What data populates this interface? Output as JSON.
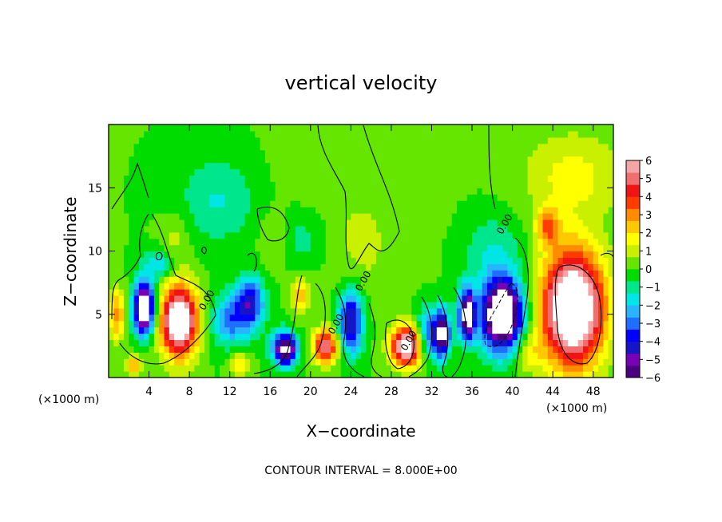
{
  "chart_data": {
    "type": "heatmap",
    "title": "vertical velocity",
    "xlabel": "X−coordinate",
    "ylabel": "Z−coordinate",
    "x_unit_left": "(×1000 m)",
    "x_unit_right": "(×1000 m)",
    "footer": "CONTOUR INTERVAL = 8.000E+00",
    "xlim": [
      0,
      50
    ],
    "ylim": [
      0,
      20
    ],
    "x_ticks": [
      4,
      8,
      12,
      16,
      20,
      24,
      28,
      32,
      36,
      40,
      44,
      48
    ],
    "x_tick_labels": [
      "4",
      "8",
      "12",
      "16",
      "20",
      "24",
      "28",
      "32",
      "36",
      "40",
      "44",
      "48"
    ],
    "y_ticks": [
      5,
      10,
      15
    ],
    "y_tick_labels": [
      "5",
      "10",
      "15"
    ],
    "contour_labels": [
      {
        "x": 10.0,
        "y": 6.0,
        "text": "0.00"
      },
      {
        "x": 25.5,
        "y": 7.5,
        "text": "0.00"
      },
      {
        "x": 22.8,
        "y": 4.1,
        "text": "0.00"
      },
      {
        "x": 30.0,
        "y": 2.8,
        "text": "0.00"
      },
      {
        "x": 39.5,
        "y": 12.0,
        "text": "0.00"
      }
    ],
    "colorbar": {
      "range": [
        -6,
        6
      ],
      "tick_labels": [
        "6",
        "5",
        "4",
        "3",
        "2",
        "1",
        "0",
        "−1",
        "−2",
        "−3",
        "−4",
        "−5",
        "−6"
      ],
      "colors": [
        "#4b0082",
        "#7a00b5",
        "#1414c8",
        "#0000ff",
        "#1e6eff",
        "#28b4ff",
        "#00e6e6",
        "#00e68c",
        "#00dc00",
        "#64e600",
        "#c8f000",
        "#ffff00",
        "#ffc800",
        "#ff8c00",
        "#ff3c00",
        "#f01414",
        "#f06e6e",
        "#f5a5a5"
      ]
    },
    "features": [
      {
        "x": 22.0,
        "y": 13.0,
        "v": 0.4,
        "sx": 10.0,
        "sy": 6.0
      },
      {
        "x": 25.0,
        "y": 10.0,
        "v": 0.6,
        "sx": 3.0,
        "sy": 4.0
      },
      {
        "x": 11.0,
        "y": 14.0,
        "v": -1.5,
        "sx": 4.0,
        "sy": 3.5
      },
      {
        "x": 19.0,
        "y": 11.0,
        "v": -1.2,
        "sx": 3.0,
        "sy": 2.5
      },
      {
        "x": 38.0,
        "y": 10.0,
        "v": -1.3,
        "sx": 3.0,
        "sy": 3.0
      },
      {
        "x": 46.0,
        "y": 16.0,
        "v": 1.6,
        "sx": 5.0,
        "sy": 3.5
      },
      {
        "x": 46.0,
        "y": 5.5,
        "v": 9.0,
        "sx": 3.0,
        "sy": 4.5
      },
      {
        "x": 43.5,
        "y": 12.0,
        "v": 3.0,
        "sx": 1.2,
        "sy": 1.5
      },
      {
        "x": 3.5,
        "y": 5.5,
        "v": -8.0,
        "sx": 1.0,
        "sy": 2.0
      },
      {
        "x": 7.0,
        "y": 4.5,
        "v": 8.0,
        "sx": 1.8,
        "sy": 2.8
      },
      {
        "x": 0.8,
        "y": 5.0,
        "v": 3.0,
        "sx": 0.8,
        "sy": 2.0
      },
      {
        "x": 2.5,
        "y": 1.0,
        "v": 2.5,
        "sx": 1.0,
        "sy": 0.8
      },
      {
        "x": 5.0,
        "y": 9.0,
        "v": -2.0,
        "sx": 1.5,
        "sy": 1.2
      },
      {
        "x": 12.0,
        "y": 4.5,
        "v": -2.8,
        "sx": 2.0,
        "sy": 2.0
      },
      {
        "x": 14.0,
        "y": 6.0,
        "v": -4.0,
        "sx": 1.5,
        "sy": 2.0
      },
      {
        "x": 17.5,
        "y": 2.3,
        "v": -7.0,
        "sx": 1.2,
        "sy": 1.3
      },
      {
        "x": 13.0,
        "y": 1.0,
        "v": 2.0,
        "sx": 1.0,
        "sy": 1.0
      },
      {
        "x": 19.0,
        "y": 6.5,
        "v": 2.5,
        "sx": 0.8,
        "sy": 1.5
      },
      {
        "x": 21.5,
        "y": 2.5,
        "v": 5.5,
        "sx": 1.2,
        "sy": 1.3
      },
      {
        "x": 24.0,
        "y": 4.5,
        "v": -5.0,
        "sx": 1.2,
        "sy": 2.5
      },
      {
        "x": 29.5,
        "y": 2.5,
        "v": 7.5,
        "sx": 1.5,
        "sy": 1.5
      },
      {
        "x": 31.5,
        "y": 3.5,
        "v": -3.0,
        "sx": 1.0,
        "sy": 2.0
      },
      {
        "x": 33.0,
        "y": 3.5,
        "v": -7.0,
        "sx": 0.8,
        "sy": 1.8
      },
      {
        "x": 35.5,
        "y": 5.0,
        "v": -7.0,
        "sx": 0.8,
        "sy": 2.0
      },
      {
        "x": 39.0,
        "y": 5.0,
        "v": -9.0,
        "sx": 2.0,
        "sy": 2.8
      },
      {
        "x": 41.5,
        "y": 2.0,
        "v": 1.5,
        "sx": 1.5,
        "sy": 1.5
      },
      {
        "x": 6.5,
        "y": 11.0,
        "v": 1.0,
        "sx": 1.5,
        "sy": 2.0
      },
      {
        "x": 16.5,
        "y": 11.0,
        "v": 1.0,
        "sx": 1.5,
        "sy": 2.0
      }
    ]
  }
}
